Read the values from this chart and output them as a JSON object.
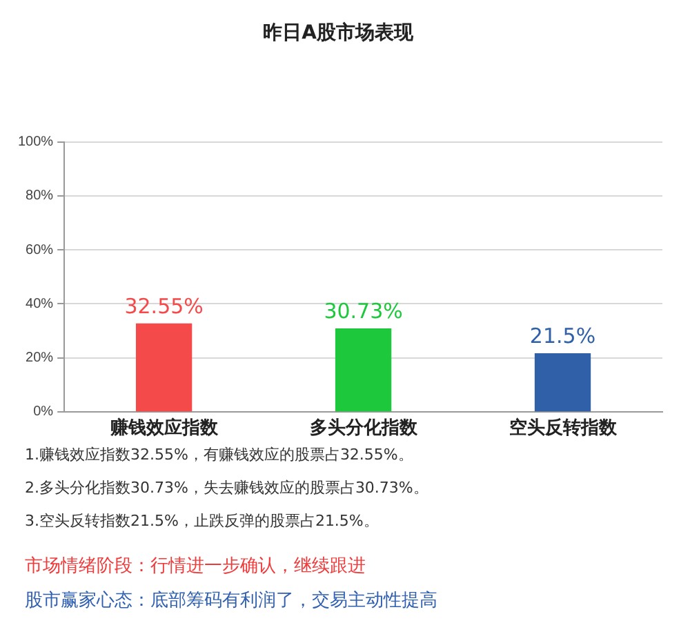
{
  "chart_data": {
    "type": "bar",
    "title": "昨日A股市场表现",
    "categories": [
      "赚钱效应指数",
      "多头分化指数",
      "空头反转指数"
    ],
    "values": [
      32.55,
      30.73,
      21.5
    ],
    "colors": [
      "#f54a4a",
      "#1dc83c",
      "#3060a8"
    ],
    "value_labels": [
      "32.55%",
      "30.73%",
      "21.5%"
    ],
    "ylim": [
      0,
      100
    ],
    "yticks": [
      {
        "value": 0,
        "label": "0%"
      },
      {
        "value": 20,
        "label": "20%"
      },
      {
        "value": 40,
        "label": "40%"
      },
      {
        "value": 60,
        "label": "60%"
      },
      {
        "value": 80,
        "label": "80%"
      },
      {
        "value": 100,
        "label": "100%"
      }
    ],
    "grid": "y",
    "annotations": [
      "1.赚钱效应指数32.55%，有赚钱效应的股票占32.55%。",
      "2.多头分化指数30.73%，失去赚钱效应的股票占30.73%。",
      "3.空头反转指数21.5%，止跌反弹的股票占21.5%。",
      "市场情绪阶段：行情进一步确认，继续跟进",
      "股市赢家心态：底部筹码有利润了，交易主动性提高"
    ]
  }
}
